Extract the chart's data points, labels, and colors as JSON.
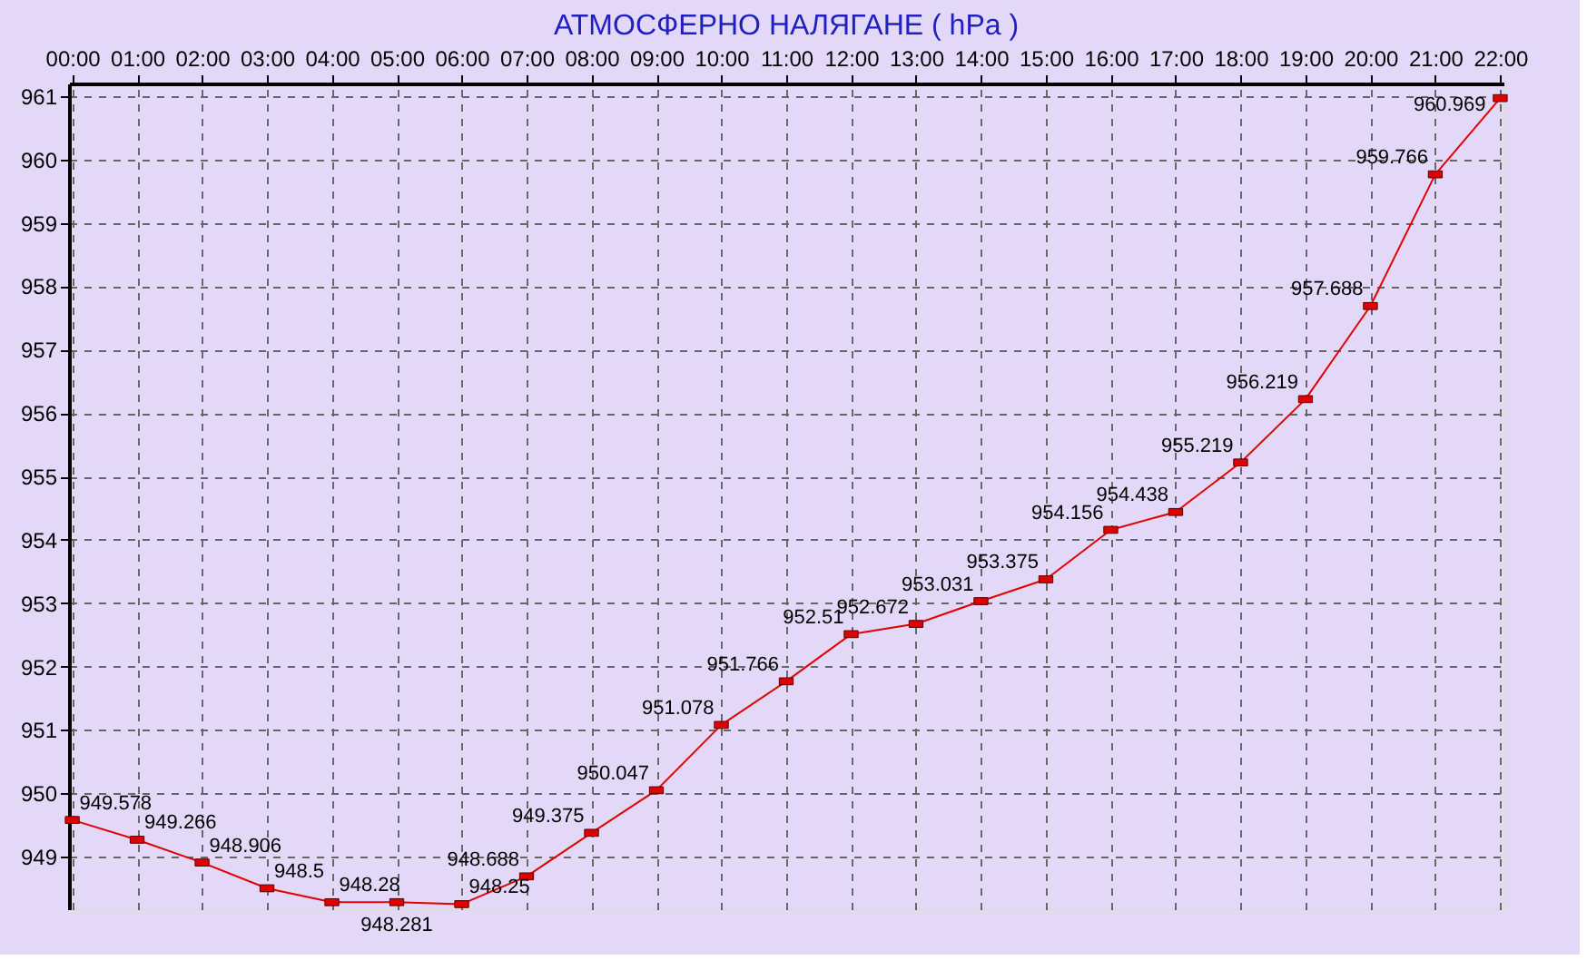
{
  "chart_data": {
    "type": "line",
    "title": "АТМОСФЕРНО НАЛЯГАНЕ  ( hPa )",
    "categories": [
      "00:00",
      "01:00",
      "02:00",
      "03:00",
      "04:00",
      "05:00",
      "06:00",
      "07:00",
      "08:00",
      "09:00",
      "10:00",
      "11:00",
      "12:00",
      "13:00",
      "14:00",
      "15:00",
      "16:00",
      "17:00",
      "18:00",
      "19:00",
      "20:00",
      "21:00",
      "22:00"
    ],
    "series": [
      {
        "color": "#e00000",
        "values": [
          949.578,
          949.266,
          948.906,
          948.5,
          948.28,
          948.281,
          948.25,
          948.688,
          949.375,
          950.047,
          951.078,
          951.766,
          952.51,
          952.672,
          953.031,
          953.375,
          954.156,
          954.438,
          955.219,
          956.219,
          957.688,
          959.766,
          960.969
        ]
      }
    ],
    "ylim": [
      948.17,
      961.2
    ],
    "yticks": [
      949,
      950,
      951,
      952,
      953,
      954,
      955,
      956,
      957,
      958,
      959,
      960,
      961
    ],
    "grid": true,
    "marker": "square",
    "line_style": "solid",
    "data_labels": true
  }
}
